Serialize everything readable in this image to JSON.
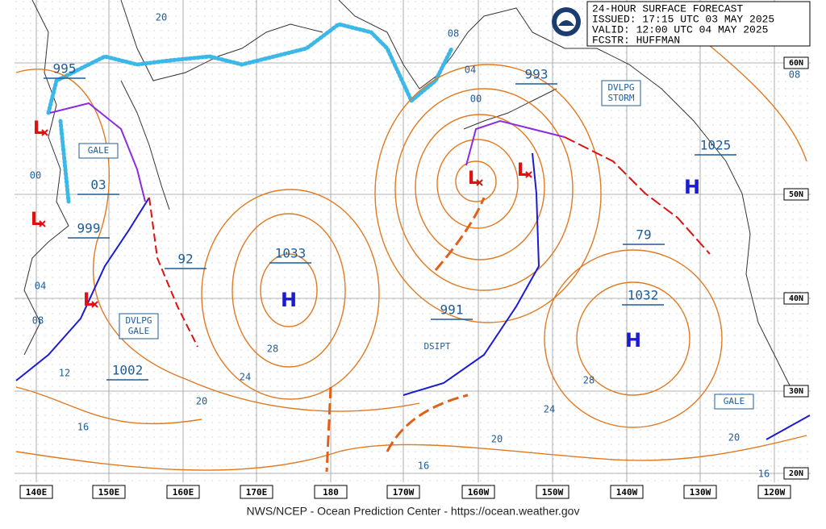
{
  "header": {
    "lines": [
      "24-HOUR SURFACE FORECAST",
      "ISSUED: 17:15 UTC 03 MAY 2025",
      "VALID:  12:00 UTC 04 MAY 2025",
      "FCSTR:  HUFFMAN"
    ]
  },
  "footer": "NWS/NCEP - Ocean Prediction Center - https://ocean.weather.gov",
  "longitudes": [
    "140E",
    "150E",
    "160E",
    "170E",
    "180",
    "170W",
    "160W",
    "150W",
    "140W",
    "130W",
    "120W"
  ],
  "latitudes": [
    "60N",
    "50N",
    "40N",
    "30N",
    "20N"
  ],
  "highs": [
    "H",
    "H",
    "H"
  ],
  "lows": [
    "L",
    "L",
    "L",
    "L",
    "L"
  ],
  "pressure_labels": [
    "995",
    "03",
    "999",
    "1002",
    "92",
    "1033",
    "991",
    "993",
    "1025",
    "79",
    "1032"
  ],
  "isobar_labels": [
    "20",
    "08",
    "04",
    "00",
    "00",
    "04",
    "08",
    "12",
    "16",
    "20",
    "24",
    "28",
    "28",
    "24",
    "20",
    "16",
    "20",
    "16",
    "08"
  ],
  "warnings": [
    [
      "GALE"
    ],
    [
      "DVLPG",
      "GALE"
    ],
    [
      "DVLPG",
      "STORM"
    ],
    [
      "DSIPT"
    ],
    [
      "GALE"
    ]
  ]
}
